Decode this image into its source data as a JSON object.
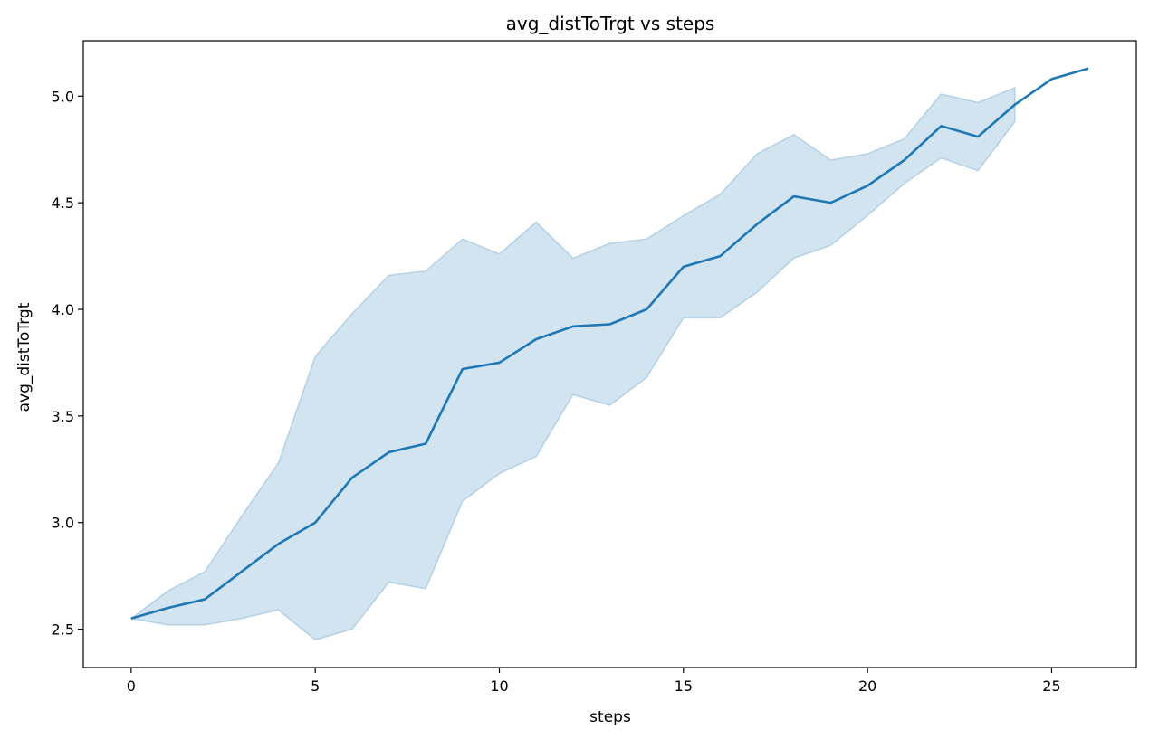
{
  "chart_data": {
    "type": "line",
    "title": "avg_distToTrgt vs steps",
    "xlabel": "steps",
    "ylabel": "avg_distToTrgt",
    "xlim": [
      -1.3,
      27.3
    ],
    "ylim": [
      2.32,
      5.26
    ],
    "xticks": [
      0,
      5,
      10,
      15,
      20,
      25
    ],
    "yticks": [
      2.5,
      3.0,
      3.5,
      4.0,
      4.5,
      5.0
    ],
    "ytick_labels": [
      "2.5",
      "3.0",
      "3.5",
      "4.0",
      "4.5",
      "5.0"
    ],
    "grid": false,
    "legend": "none",
    "colors": {
      "line": "#1f77b4",
      "band": "#1f77b4"
    },
    "series": [
      {
        "x": [
          0,
          1,
          2,
          3,
          4,
          5,
          6,
          7,
          8,
          9,
          10,
          11,
          12,
          13,
          14,
          15,
          16,
          17,
          18,
          19,
          20,
          21,
          22,
          23,
          24,
          25,
          26
        ],
        "values": [
          2.55,
          2.6,
          2.64,
          2.77,
          2.9,
          3.0,
          3.21,
          3.33,
          3.37,
          3.72,
          3.75,
          3.86,
          3.92,
          3.93,
          4.0,
          4.2,
          4.25,
          4.4,
          4.53,
          4.5,
          4.58,
          4.7,
          4.86,
          4.81,
          4.96,
          5.08,
          5.13
        ],
        "band_x": [
          0,
          1,
          2,
          3,
          4,
          5,
          6,
          7,
          8,
          9,
          10,
          11,
          12,
          13,
          14,
          15,
          16,
          17,
          18,
          19,
          20,
          21,
          22,
          23,
          24
        ],
        "band_upper": [
          2.55,
          2.68,
          2.77,
          3.03,
          3.28,
          3.78,
          3.98,
          4.16,
          4.18,
          4.33,
          4.26,
          4.41,
          4.24,
          4.31,
          4.33,
          4.44,
          4.54,
          4.73,
          4.82,
          4.7,
          4.73,
          4.8,
          5.01,
          4.97,
          5.04
        ],
        "band_lower": [
          2.55,
          2.52,
          2.52,
          2.55,
          2.59,
          2.45,
          2.5,
          2.72,
          2.69,
          3.1,
          3.23,
          3.31,
          3.6,
          3.55,
          3.68,
          3.96,
          3.96,
          4.08,
          4.24,
          4.3,
          4.44,
          4.59,
          4.71,
          4.65,
          4.88
        ]
      }
    ]
  }
}
